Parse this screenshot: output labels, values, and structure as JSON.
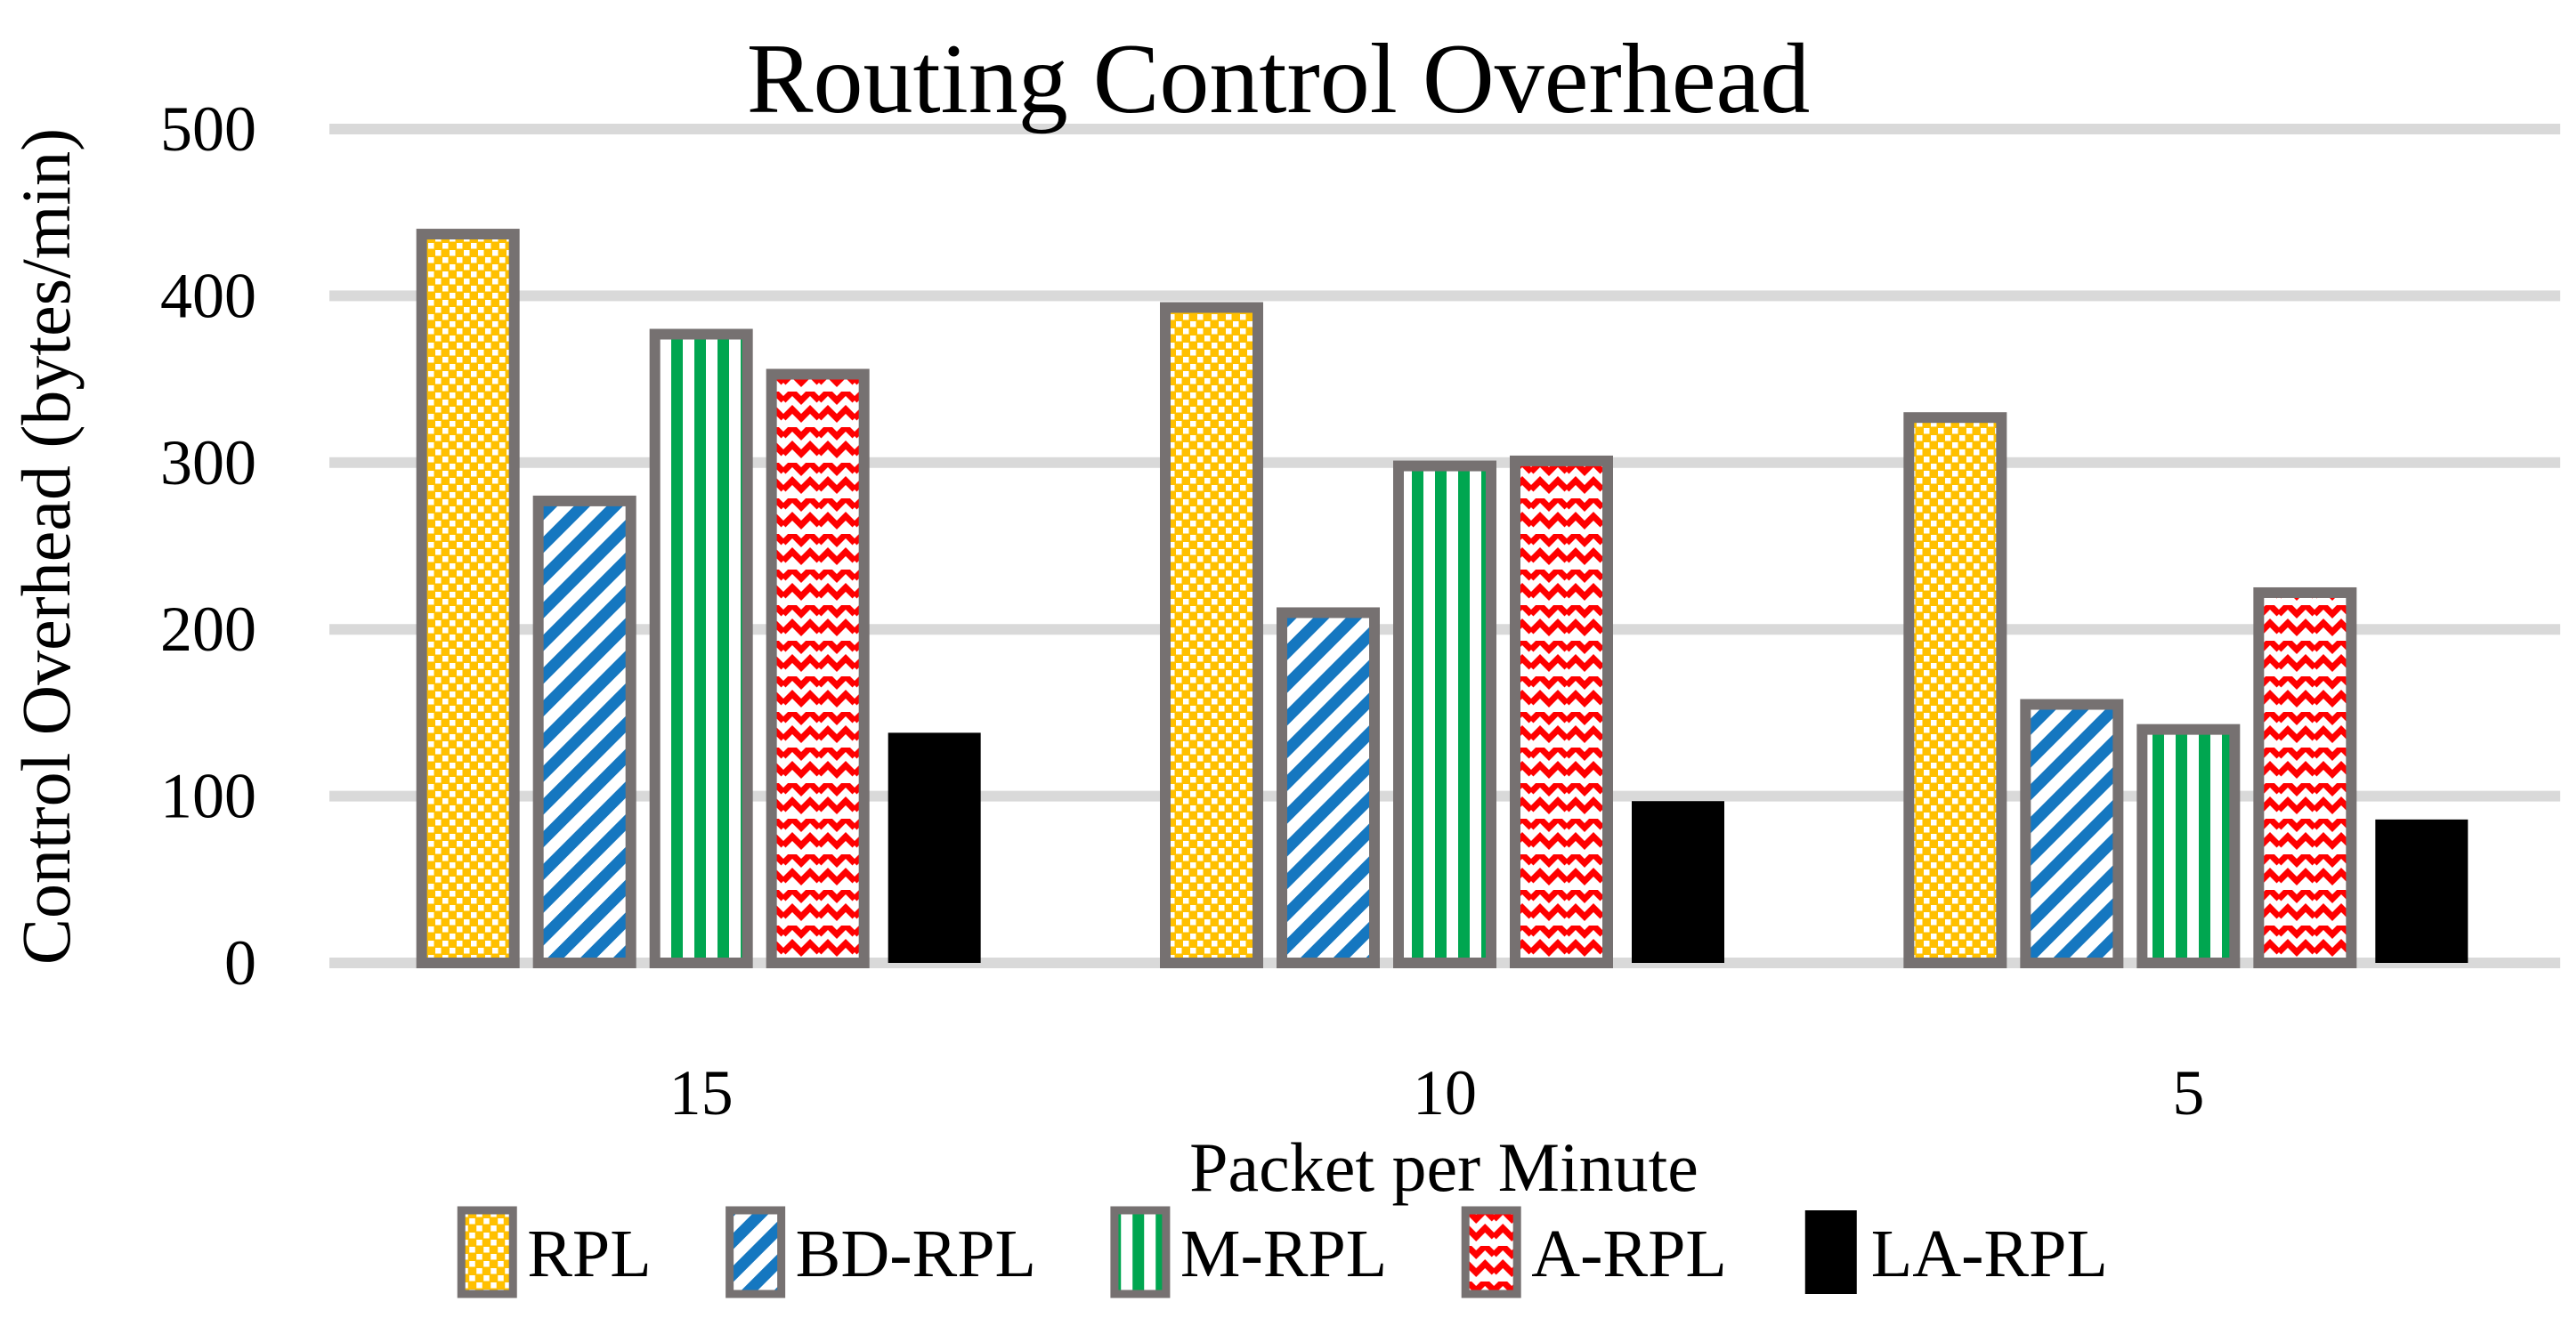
{
  "chart_data": {
    "type": "bar",
    "title": "Routing Control Overhead",
    "xlabel": "Packet per Minute",
    "ylabel": "Control Overhead (bytes/min)",
    "categories": [
      "15",
      "10",
      "5"
    ],
    "series": [
      {
        "name": "RPL",
        "values": [
          437,
          393,
          327
        ],
        "color": "#FFC000",
        "pattern": "dotted-diamond",
        "border": "#767171"
      },
      {
        "name": "BD-RPL",
        "values": [
          277,
          210,
          155
        ],
        "color": "#1577C0",
        "pattern": "diagonal-stripes",
        "border": "#767171"
      },
      {
        "name": "M-RPL",
        "values": [
          377,
          298,
          140
        ],
        "color": "#00A650",
        "pattern": "vertical-stripes",
        "border": "#767171"
      },
      {
        "name": "A-RPL",
        "values": [
          353,
          301,
          222
        ],
        "color": "#FF0000",
        "pattern": "zigzag",
        "border": "#767171"
      },
      {
        "name": "LA-RPL",
        "values": [
          138,
          97,
          86
        ],
        "color": "#000000",
        "pattern": "solid",
        "border": null
      }
    ],
    "ylim": [
      0,
      500
    ],
    "yticks": [
      0,
      100,
      200,
      300,
      400,
      500
    ],
    "grid": true,
    "gridline_color": "#D9D9D9",
    "legend_position": "bottom",
    "background": "#FFFFFF",
    "text_color": "#000000"
  }
}
